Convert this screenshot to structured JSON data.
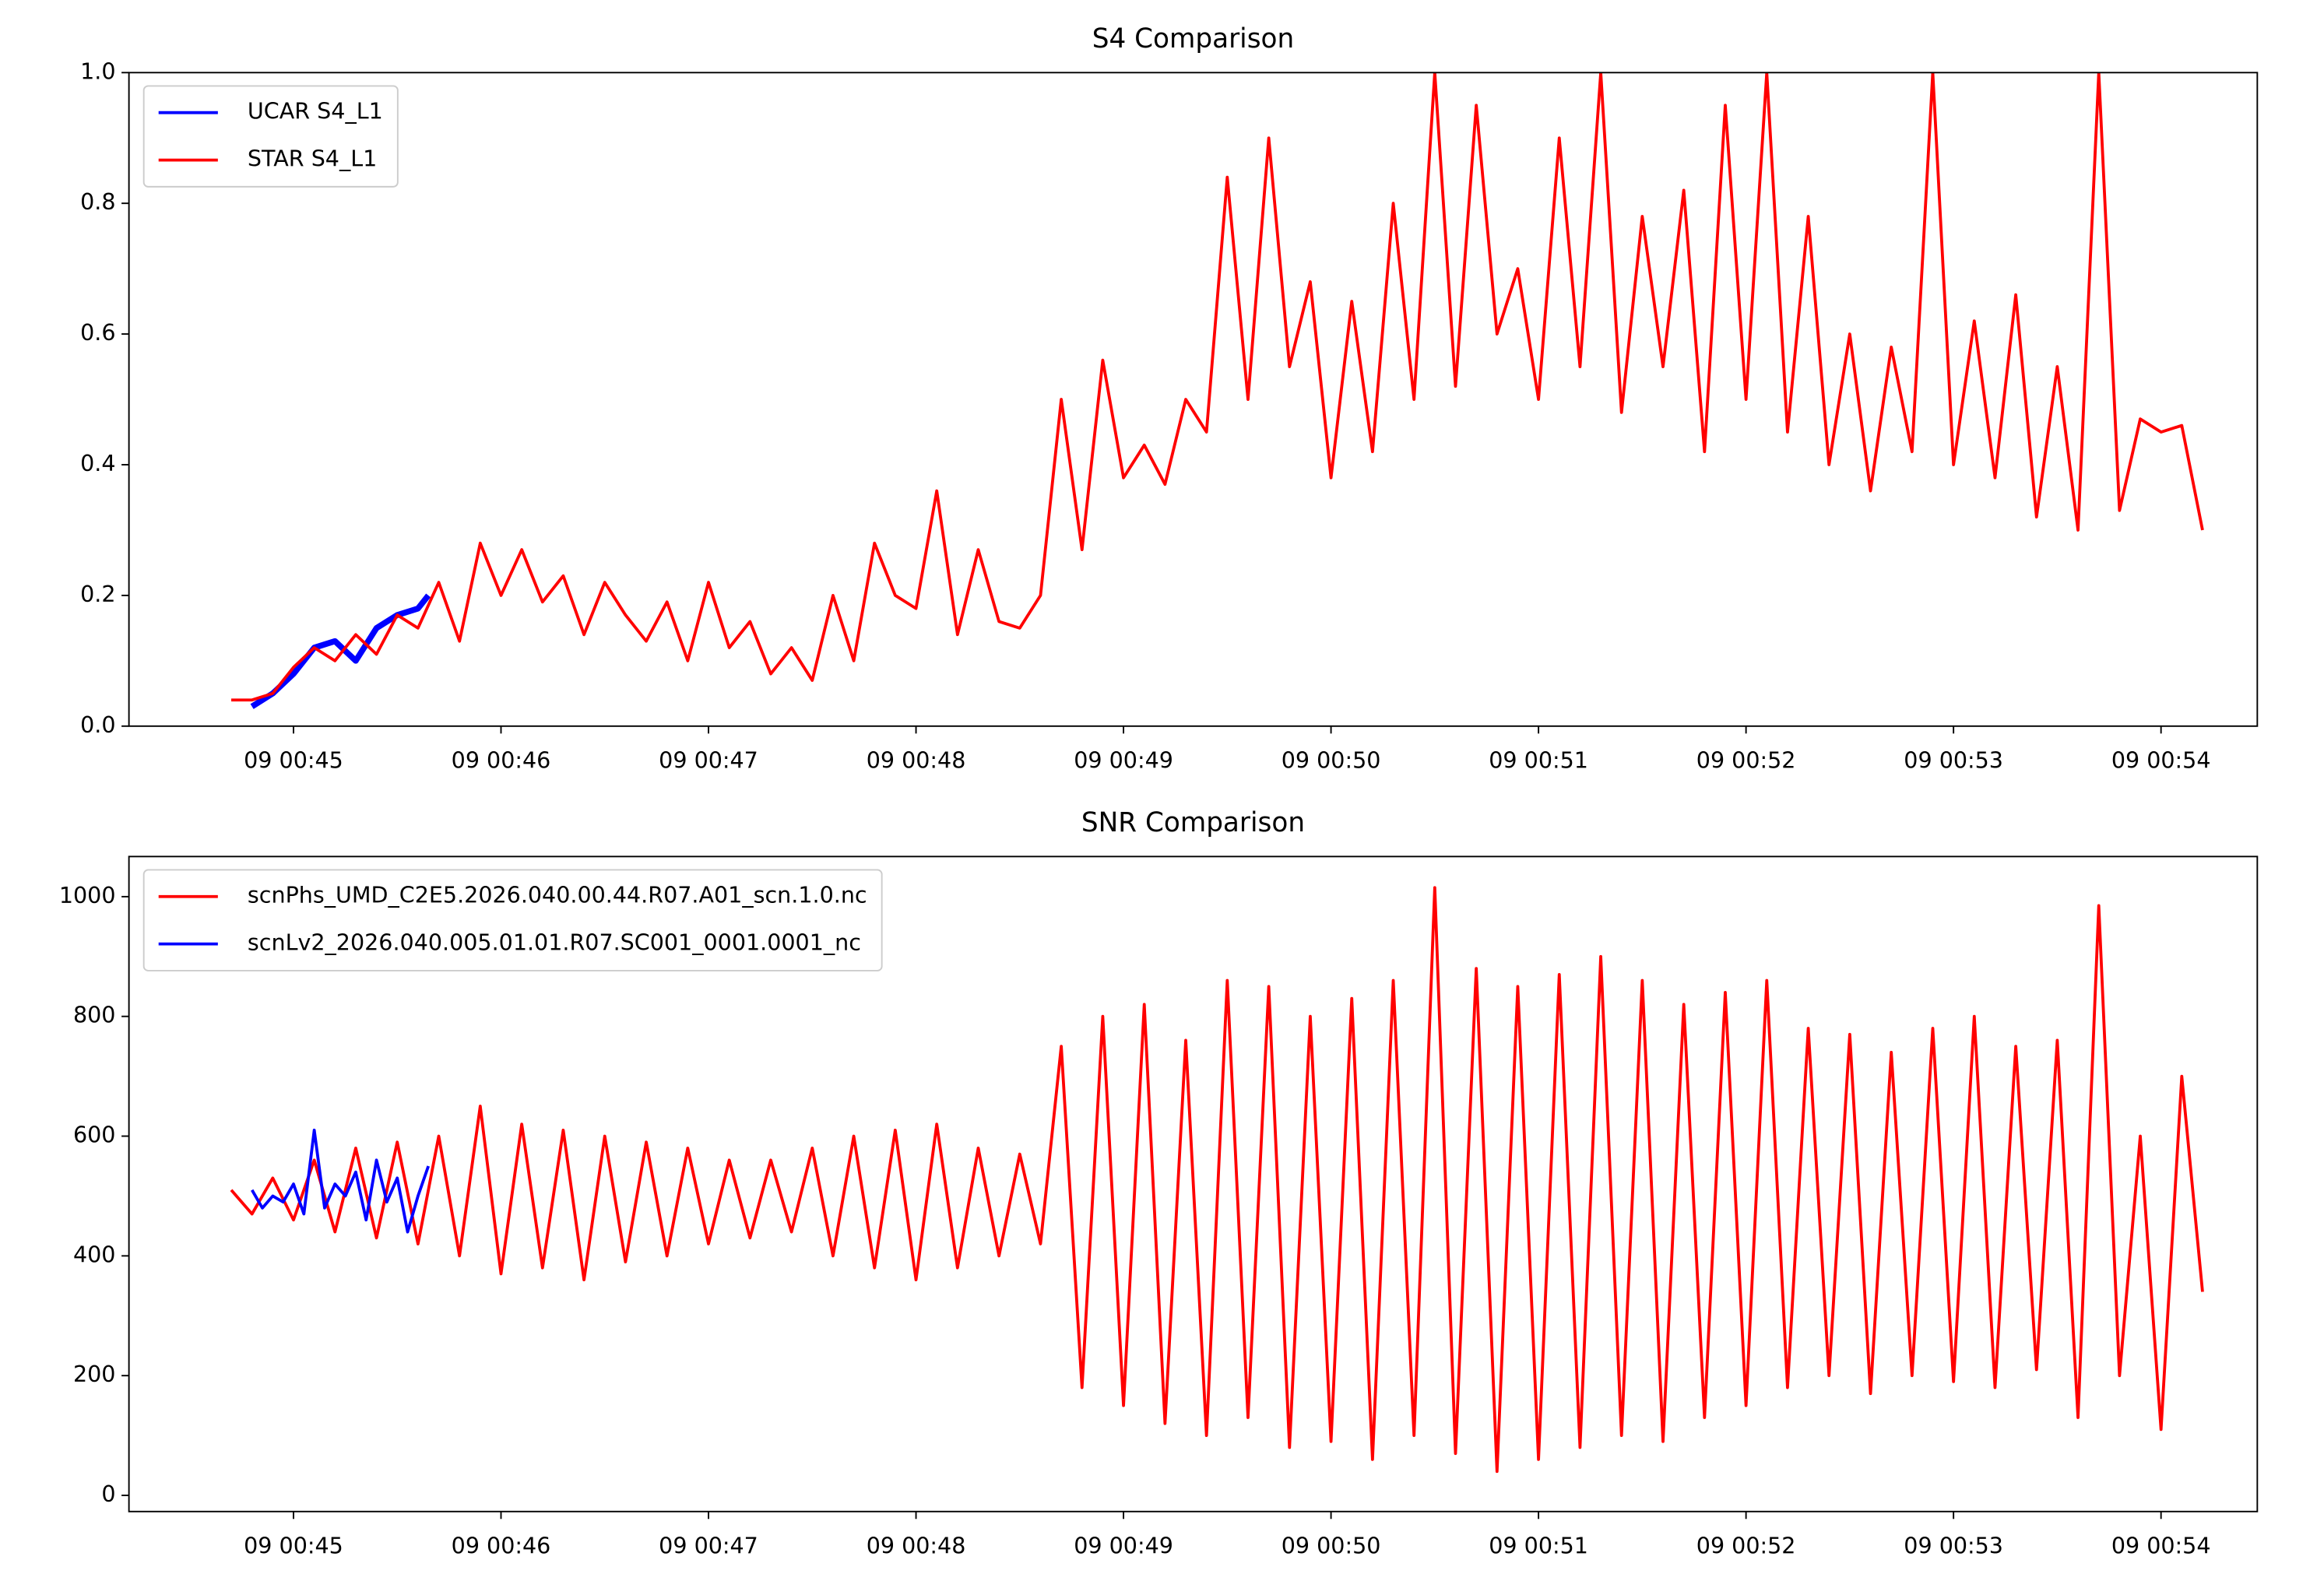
{
  "chart_data": [
    {
      "type": "line",
      "title": "S4 Comparison",
      "legend": "upper left",
      "xlim": [
        44.207,
        54.464
      ],
      "ylim": [
        0,
        1
      ],
      "xticks": [
        {
          "value": 45,
          "label": "09 00:45"
        },
        {
          "value": 46,
          "label": "09 00:46"
        },
        {
          "value": 47,
          "label": "09 00:47"
        },
        {
          "value": 48,
          "label": "09 00:48"
        },
        {
          "value": 49,
          "label": "09 00:49"
        },
        {
          "value": 50,
          "label": "09 00:50"
        },
        {
          "value": 51,
          "label": "09 00:51"
        },
        {
          "value": 52,
          "label": "09 00:52"
        },
        {
          "value": 53,
          "label": "09 00:53"
        },
        {
          "value": 54,
          "label": "09 00:54"
        }
      ],
      "yticks": [
        {
          "value": 0,
          "label": "0.0"
        },
        0.2,
        0.4,
        0.6,
        0.8,
        {
          "value": 1,
          "label": "1.0"
        }
      ],
      "series": [
        {
          "name": "UCAR S4_L1",
          "color": "#0000ff",
          "width": 4,
          "x": [
            44.8,
            44.9,
            45.0,
            45.1,
            45.2,
            45.3,
            45.4,
            45.5,
            45.6,
            45.65
          ],
          "values": [
            0.03,
            0.05,
            0.08,
            0.12,
            0.13,
            0.1,
            0.15,
            0.17,
            0.18,
            0.2
          ]
        },
        {
          "name": "STAR S4_L1",
          "color": "#ff0000",
          "width": 2,
          "x": [
            44.7,
            44.8,
            44.9,
            45.0,
            45.1,
            45.2,
            45.3,
            45.4,
            45.5,
            45.6,
            45.7,
            45.8,
            45.9,
            46.0,
            46.1,
            46.2,
            46.3,
            46.4,
            46.5,
            46.6,
            46.7,
            46.8,
            46.9,
            47.0,
            47.1,
            47.2,
            47.3,
            47.4,
            47.5,
            47.6,
            47.7,
            47.8,
            47.9,
            48.0,
            48.1,
            48.2,
            48.3,
            48.4,
            48.5,
            48.6,
            48.7,
            48.8,
            48.9,
            49.0,
            49.1,
            49.2,
            49.3,
            49.4,
            49.5,
            49.6,
            49.7,
            49.8,
            49.9,
            50.0,
            50.1,
            50.2,
            50.3,
            50.4,
            50.5,
            50.6,
            50.7,
            50.8,
            50.9,
            51.0,
            51.1,
            51.2,
            51.3,
            51.4,
            51.5,
            51.6,
            51.7,
            51.8,
            51.9,
            52.0,
            52.1,
            52.2,
            52.3,
            52.4,
            52.5,
            52.6,
            52.7,
            52.8,
            52.9,
            53.0,
            53.1,
            53.2,
            53.3,
            53.4,
            53.5,
            53.6,
            53.7,
            53.8,
            53.9,
            54.0,
            54.1,
            54.2
          ],
          "values": [
            0.04,
            0.04,
            0.05,
            0.09,
            0.12,
            0.1,
            0.14,
            0.11,
            0.17,
            0.15,
            0.22,
            0.13,
            0.28,
            0.2,
            0.27,
            0.19,
            0.23,
            0.14,
            0.22,
            0.17,
            0.13,
            0.19,
            0.1,
            0.22,
            0.12,
            0.16,
            0.08,
            0.12,
            0.07,
            0.2,
            0.1,
            0.28,
            0.2,
            0.18,
            0.36,
            0.14,
            0.27,
            0.16,
            0.15,
            0.2,
            0.5,
            0.27,
            0.56,
            0.38,
            0.43,
            0.37,
            0.5,
            0.45,
            0.84,
            0.5,
            0.9,
            0.55,
            0.68,
            0.38,
            0.65,
            0.42,
            0.8,
            0.5,
            1.0,
            0.52,
            0.95,
            0.6,
            0.7,
            0.5,
            0.9,
            0.55,
            1.0,
            0.48,
            0.78,
            0.55,
            0.82,
            0.42,
            0.95,
            0.5,
            1.0,
            0.45,
            0.78,
            0.4,
            0.6,
            0.36,
            0.58,
            0.42,
            1.0,
            0.4,
            0.62,
            0.38,
            0.66,
            0.32,
            0.55,
            0.3,
            1.0,
            0.33,
            0.47,
            0.45,
            0.46,
            0.3
          ]
        }
      ]
    },
    {
      "type": "line",
      "title": "SNR Comparison",
      "legend": "upper left",
      "xlim": [
        44.207,
        54.464
      ],
      "ylim": [
        -27,
        1067
      ],
      "xticks": [
        {
          "value": 45,
          "label": "09 00:45"
        },
        {
          "value": 46,
          "label": "09 00:46"
        },
        {
          "value": 47,
          "label": "09 00:47"
        },
        {
          "value": 48,
          "label": "09 00:48"
        },
        {
          "value": 49,
          "label": "09 00:49"
        },
        {
          "value": 50,
          "label": "09 00:50"
        },
        {
          "value": 51,
          "label": "09 00:51"
        },
        {
          "value": 52,
          "label": "09 00:52"
        },
        {
          "value": 53,
          "label": "09 00:53"
        },
        {
          "value": 54,
          "label": "09 00:54"
        }
      ],
      "yticks": [
        0,
        200,
        400,
        600,
        800,
        1000
      ],
      "series": [
        {
          "name": "scnPhs_UMD_C2E5.2026.040.00.44.R07.A01_scn.1.0.nc",
          "color": "#ff0000",
          "width": 2,
          "x": [
            44.7,
            44.8,
            44.9,
            45.0,
            45.1,
            45.2,
            45.3,
            45.4,
            45.5,
            45.6,
            45.7,
            45.8,
            45.9,
            46.0,
            46.1,
            46.2,
            46.3,
            46.4,
            46.5,
            46.6,
            46.7,
            46.8,
            46.9,
            47.0,
            47.1,
            47.2,
            47.3,
            47.4,
            47.5,
            47.6,
            47.7,
            47.8,
            47.9,
            48.0,
            48.1,
            48.2,
            48.3,
            48.4,
            48.5,
            48.6,
            48.7,
            48.8,
            48.9,
            49.0,
            49.1,
            49.2,
            49.3,
            49.4,
            49.5,
            49.6,
            49.7,
            49.8,
            49.9,
            50.0,
            50.1,
            50.2,
            50.3,
            50.4,
            50.5,
            50.6,
            50.7,
            50.8,
            50.9,
            51.0,
            51.1,
            51.2,
            51.3,
            51.4,
            51.5,
            51.6,
            51.7,
            51.8,
            51.9,
            52.0,
            52.1,
            52.2,
            52.3,
            52.4,
            52.5,
            52.6,
            52.7,
            52.8,
            52.9,
            53.0,
            53.1,
            53.2,
            53.3,
            53.4,
            53.5,
            53.6,
            53.7,
            53.8,
            53.9,
            54.0,
            54.1,
            54.2
          ],
          "values": [
            510,
            470,
            530,
            460,
            560,
            440,
            580,
            430,
            590,
            420,
            600,
            400,
            650,
            370,
            620,
            380,
            610,
            360,
            600,
            390,
            590,
            400,
            580,
            420,
            560,
            430,
            560,
            440,
            580,
            400,
            600,
            380,
            610,
            360,
            620,
            380,
            580,
            400,
            570,
            420,
            750,
            180,
            800,
            150,
            820,
            120,
            760,
            100,
            860,
            130,
            850,
            80,
            800,
            90,
            830,
            60,
            860,
            100,
            1015,
            70,
            880,
            40,
            850,
            60,
            870,
            80,
            900,
            100,
            860,
            90,
            820,
            130,
            840,
            150,
            860,
            180,
            780,
            200,
            770,
            170,
            740,
            200,
            780,
            190,
            800,
            180,
            750,
            210,
            760,
            130,
            985,
            200,
            600,
            110,
            700,
            340
          ]
        },
        {
          "name": "scnLv2_2026.040.005.01.01.R07.SC001_0001.0001_nc",
          "color": "#0000ff",
          "width": 2,
          "x": [
            44.8,
            44.85,
            44.9,
            44.95,
            45.0,
            45.05,
            45.1,
            45.15,
            45.2,
            45.25,
            45.3,
            45.35,
            45.4,
            45.45,
            45.5,
            45.55,
            45.6,
            45.65
          ],
          "values": [
            510,
            480,
            500,
            490,
            520,
            470,
            610,
            480,
            520,
            500,
            540,
            460,
            560,
            490,
            530,
            440,
            500,
            550
          ]
        }
      ]
    }
  ]
}
